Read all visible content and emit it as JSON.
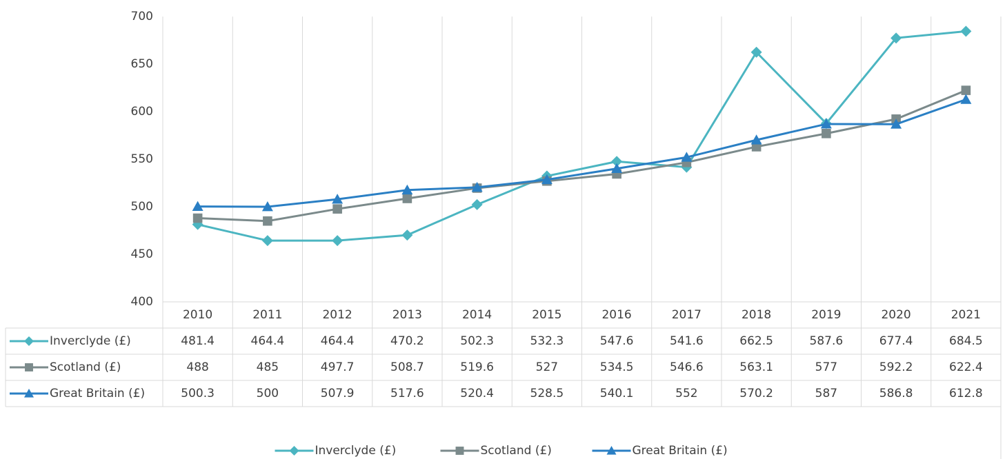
{
  "chart_data": {
    "type": "line",
    "categories": [
      "2010",
      "2011",
      "2012",
      "2013",
      "2014",
      "2015",
      "2016",
      "2017",
      "2018",
      "2019",
      "2020",
      "2021"
    ],
    "series": [
      {
        "name": "Inverclyde (£)",
        "color": "#4bb5c1",
        "marker": "diamond",
        "values": [
          481.4,
          464.4,
          464.4,
          470.2,
          502.3,
          532.3,
          547.6,
          541.6,
          662.5,
          587.6,
          677.4,
          684.5
        ]
      },
      {
        "name": "Scotland (£)",
        "color": "#7b8a8b",
        "marker": "square",
        "values": [
          488,
          485,
          497.7,
          508.7,
          519.6,
          527,
          534.5,
          546.6,
          563.1,
          577,
          592.2,
          622.4
        ]
      },
      {
        "name": "Great Britain (£)",
        "color": "#2a7fc4",
        "marker": "triangle",
        "values": [
          500.3,
          500,
          507.9,
          517.6,
          520.4,
          528.5,
          540.1,
          552,
          570.2,
          587,
          586.8,
          612.8
        ]
      }
    ],
    "ylim": [
      400,
      700
    ],
    "yticks": [
      400,
      450,
      500,
      550,
      600,
      650,
      700
    ],
    "data_table": true,
    "legend": "bottom"
  }
}
